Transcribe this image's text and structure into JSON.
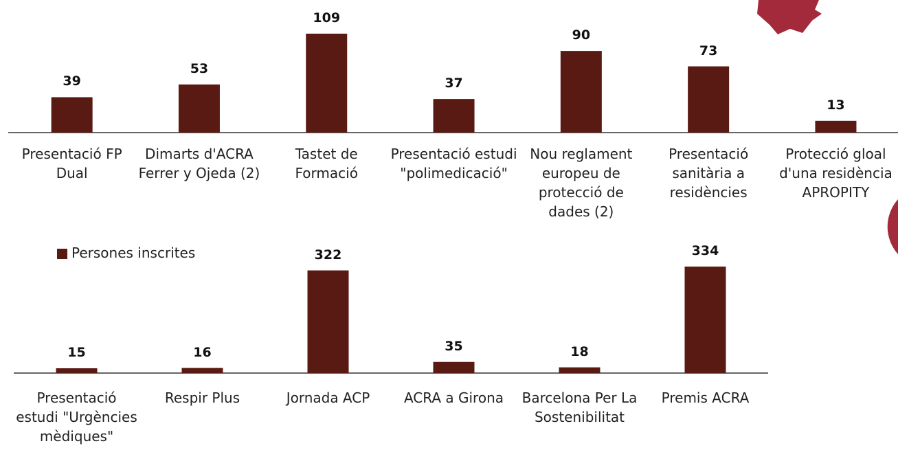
{
  "chart_data": [
    {
      "type": "bar",
      "categories": [
        "Presentació FP Dual",
        "Dimarts d'ACRA Ferrer y Ojeda (2)",
        "Tastet de Formació",
        "Presentació estudi \"polimedicació\"",
        "Nou reglament europeu de protecció de dades (2)",
        "Presentació sanitària a residències",
        "Protecció gloal d'una residència APROPITY"
      ],
      "values": [
        39,
        53,
        109,
        37,
        90,
        73,
        13
      ],
      "color": "#5a1a14"
    },
    {
      "type": "bar",
      "categories": [
        "Presentació estudi \"Urgències mèdiques\"",
        "Respir Plus",
        "Jornada ACP",
        "ACRA a Girona",
        "Barcelona Per La Sostenibilitat",
        "Premis ACRA"
      ],
      "series": [
        {
          "name": "Persones inscrites",
          "color": "#5a1a14",
          "values": [
            15,
            16,
            322,
            35,
            18,
            334
          ]
        }
      ]
    }
  ]
}
